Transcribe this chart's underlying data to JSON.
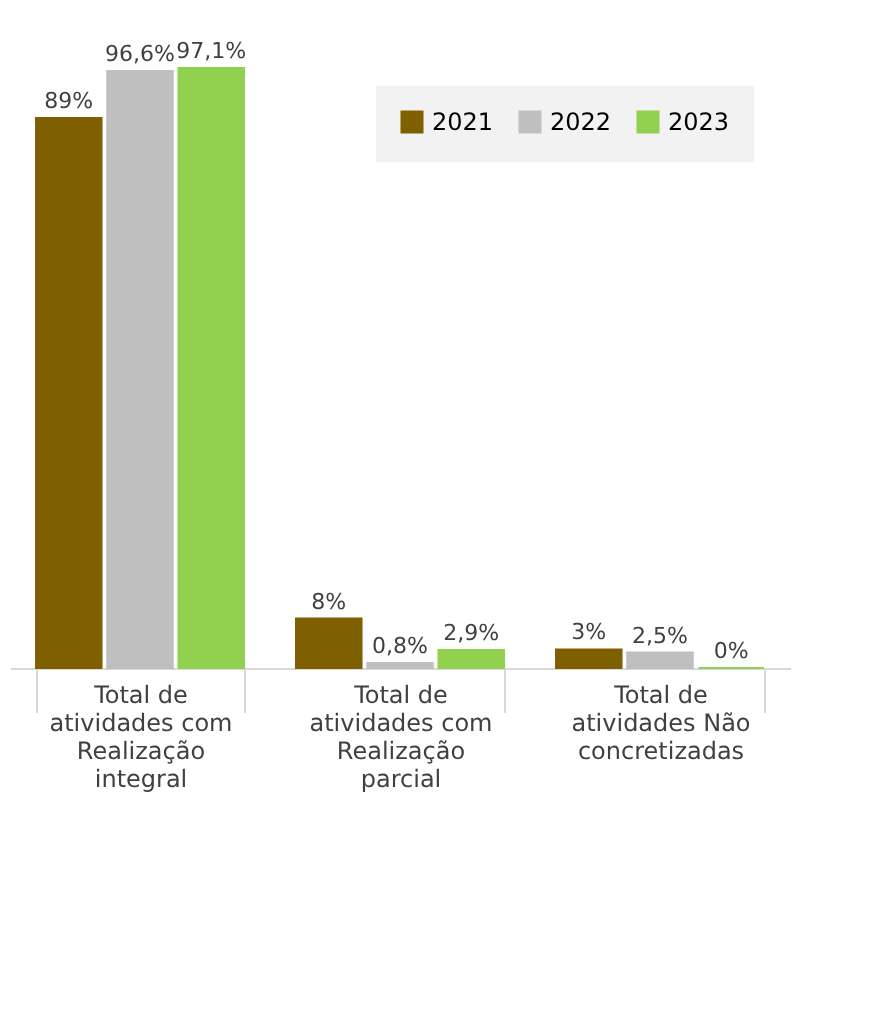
{
  "chart_data": {
    "type": "bar",
    "categories": [
      "Total de atividades com Realização integral",
      "Total de atividades com Realização parcial",
      "Total de atividades Não concretizadas"
    ],
    "series": [
      {
        "name": "2021",
        "color": "#7f6000",
        "values": [
          89,
          8,
          3
        ],
        "value_labels": [
          "89%",
          "8%",
          "3%"
        ]
      },
      {
        "name": "2022",
        "color": "#bfbfbf",
        "values": [
          96.6,
          0.8,
          2.5
        ],
        "value_labels": [
          "96,6%",
          "0,8%",
          "2,5%"
        ]
      },
      {
        "name": "2023",
        "color": "#92d050",
        "values": [
          97.1,
          2.9,
          0
        ],
        "value_labels": [
          "97,1%",
          "2,9%",
          "0%"
        ]
      }
    ],
    "legend": "top right",
    "grid": false
  }
}
